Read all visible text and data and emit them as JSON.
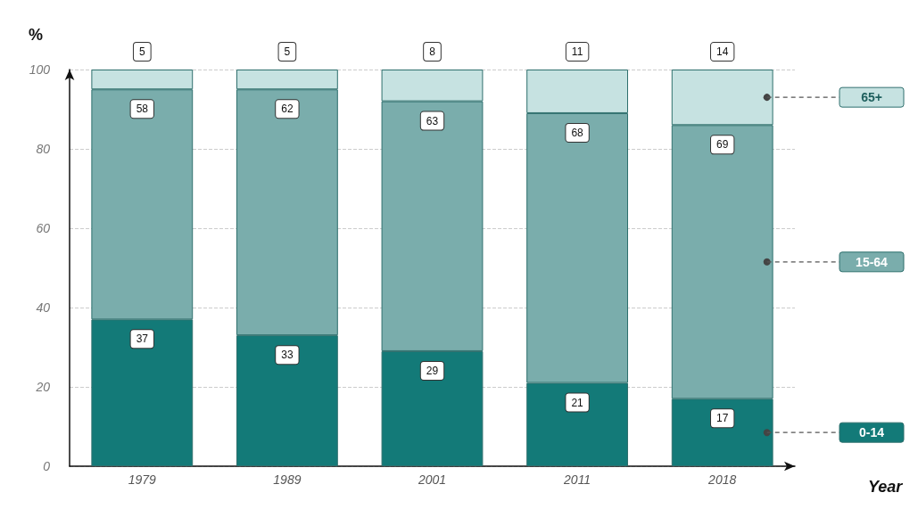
{
  "chart_data": {
    "type": "bar",
    "stacked": true,
    "xlabel": "Year",
    "ylabel": "%",
    "categories": [
      "1979",
      "1989",
      "2001",
      "2011",
      "2018"
    ],
    "series": [
      {
        "name": "0-14",
        "color": "#137a78",
        "values": [
          37,
          33,
          29,
          21,
          17
        ]
      },
      {
        "name": "15-64",
        "color": "#7aadac",
        "values": [
          58,
          62,
          63,
          68,
          69
        ]
      },
      {
        "name": "65+",
        "color": "#c6e2e1",
        "values": [
          5,
          5,
          8,
          11,
          14
        ]
      }
    ],
    "ylim": [
      0,
      100
    ],
    "yticks": [
      0,
      20,
      40,
      60,
      80,
      100
    ],
    "grid": "y",
    "legend": "right",
    "data_labels": true
  }
}
